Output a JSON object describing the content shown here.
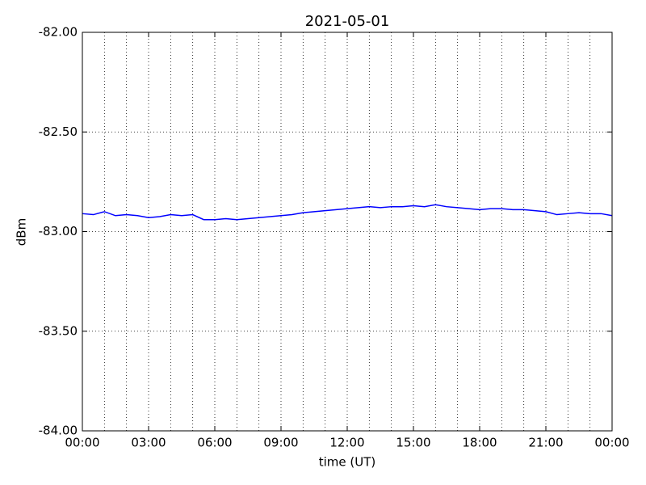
{
  "chart_data": {
    "type": "line",
    "title": "2021-05-01",
    "x_label": "time (UT)",
    "y_label": "dBm",
    "x": [
      0,
      0.5,
      1,
      1.5,
      2,
      2.5,
      3,
      3.5,
      4,
      4.5,
      5,
      5.5,
      6,
      6.5,
      7,
      7.5,
      8,
      8.5,
      9,
      9.5,
      10,
      10.5,
      11,
      11.5,
      12,
      12.5,
      13,
      13.5,
      14,
      14.5,
      15,
      15.5,
      16,
      16.5,
      17,
      17.5,
      18,
      18.5,
      19,
      19.5,
      20,
      20.5,
      21,
      21.5,
      22,
      22.5,
      23,
      23.5,
      24
    ],
    "series": [
      {
        "name": "dBm",
        "color": "#0000ff",
        "values": [
          -82.91,
          -82.915,
          -82.9,
          -82.92,
          -82.915,
          -82.92,
          -82.93,
          -82.925,
          -82.915,
          -82.92,
          -82.915,
          -82.94,
          -82.94,
          -82.935,
          -82.94,
          -82.935,
          -82.93,
          -82.925,
          -82.92,
          -82.915,
          -82.905,
          -82.9,
          -82.895,
          -82.89,
          -82.885,
          -82.88,
          -82.875,
          -82.88,
          -82.875,
          -82.875,
          -82.87,
          -82.875,
          -82.865,
          -82.875,
          -82.88,
          -82.885,
          -82.89,
          -82.885,
          -82.885,
          -82.89,
          -82.89,
          -82.895,
          -82.9,
          -82.915,
          -82.91,
          -82.905,
          -82.91,
          -82.91,
          -82.92
        ]
      }
    ],
    "xlim": [
      0,
      24
    ],
    "xticks": [
      {
        "value": 0,
        "label": "00:00"
      },
      {
        "value": 3,
        "label": "03:00"
      },
      {
        "value": 6,
        "label": "06:00"
      },
      {
        "value": 9,
        "label": "09:00"
      },
      {
        "value": 12,
        "label": "12:00"
      },
      {
        "value": 15,
        "label": "15:00"
      },
      {
        "value": 18,
        "label": "18:00"
      },
      {
        "value": 21,
        "label": "21:00"
      },
      {
        "value": 24,
        "label": "00:00"
      }
    ],
    "xgrid": [
      1,
      2,
      3,
      4,
      5,
      6,
      7,
      8,
      9,
      10,
      11,
      12,
      13,
      14,
      15,
      16,
      17,
      18,
      19,
      20,
      21,
      22,
      23
    ],
    "ylim": [
      -84,
      -82
    ],
    "yticks": [
      {
        "value": -84,
        "label": "-84.00"
      },
      {
        "value": -83.5,
        "label": "-83.50"
      },
      {
        "value": -83,
        "label": "-83.00"
      },
      {
        "value": -82.5,
        "label": "-82.50"
      },
      {
        "value": -82,
        "label": "-82.00"
      }
    ],
    "grid": true
  }
}
